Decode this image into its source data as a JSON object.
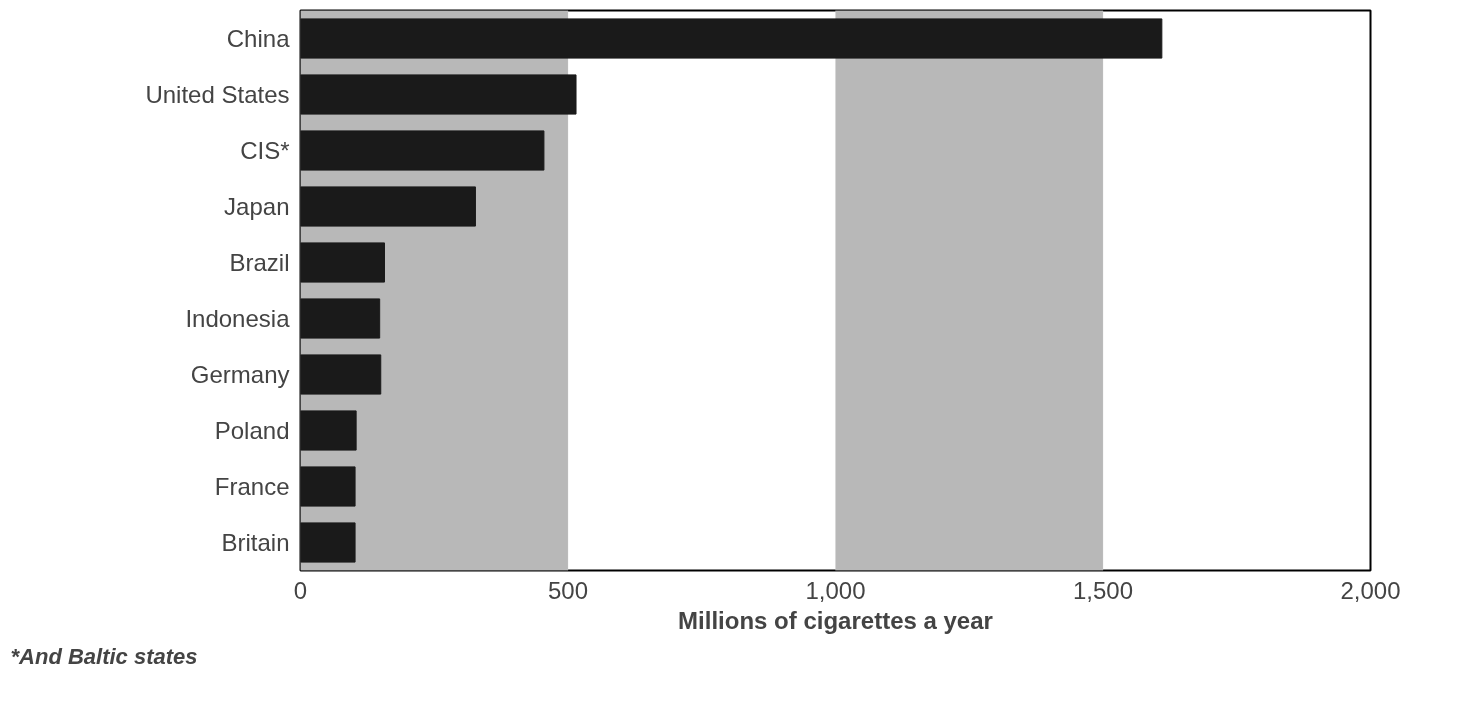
{
  "chart_data": {
    "type": "bar",
    "orientation": "horizontal",
    "xlabel": "Millions of cigarettes a year",
    "categories": [
      "China",
      "United States",
      "CIS*",
      "Japan",
      "Brazil",
      "Indonesia",
      "Germany",
      "Poland",
      "France",
      "Britain"
    ],
    "values": [
      1610,
      515,
      455,
      327,
      157,
      148,
      150,
      104,
      102,
      102
    ],
    "color": "#1a1a1a",
    "xlim": [
      0,
      2000
    ],
    "xticks": [
      0,
      {
        "value": 500,
        "label": "500"
      },
      {
        "value": 1000,
        "label": "1,000"
      },
      {
        "value": 1500,
        "label": "1,500"
      },
      {
        "value": 2000,
        "label": "2,000"
      }
    ],
    "bands": [
      {
        "axis": "x",
        "from": 0,
        "to": 500,
        "color": "#b8b8b8"
      },
      {
        "axis": "x",
        "from": 1000,
        "to": 1500,
        "color": "#b8b8b8"
      }
    ],
    "annotations": [
      "*And Baltic states"
    ],
    "grid": false
  }
}
